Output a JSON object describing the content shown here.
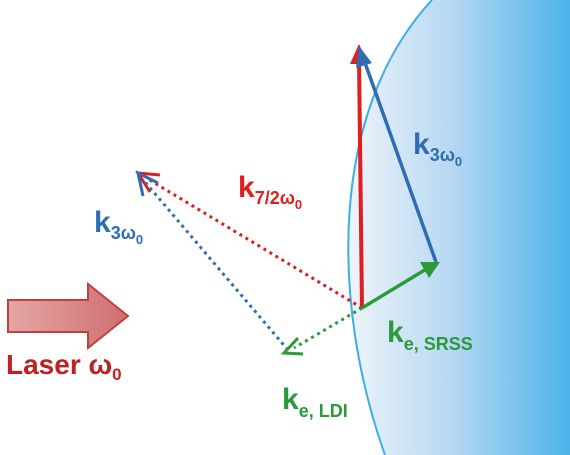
{
  "colors": {
    "red": "#e01e1e",
    "blue": "#2e6db4",
    "green": "#2a9a3a",
    "laser_arrow_fill": "#d99a9a",
    "laser_arrow_stroke": "#c04040",
    "plasma_light": "#eef4fb",
    "plasma_dark": "#4db3ea",
    "plasma_edge": "#3aaee8"
  },
  "labels": {
    "k_7_2": {
      "main": "k",
      "sub": "7/2ω",
      "subsub": "0"
    },
    "k_3_left": {
      "main": "k",
      "sub": "3ω",
      "subsub": "0"
    },
    "k_3_right": {
      "main": "k",
      "sub": "3ω",
      "subsub": "0"
    },
    "ke_srss": {
      "main": "k",
      "sub": "e, SRSS"
    },
    "ke_ldi": {
      "main": "k",
      "sub": "e, LDI"
    },
    "laser": {
      "text": "Laser ω",
      "sub": "0"
    }
  }
}
